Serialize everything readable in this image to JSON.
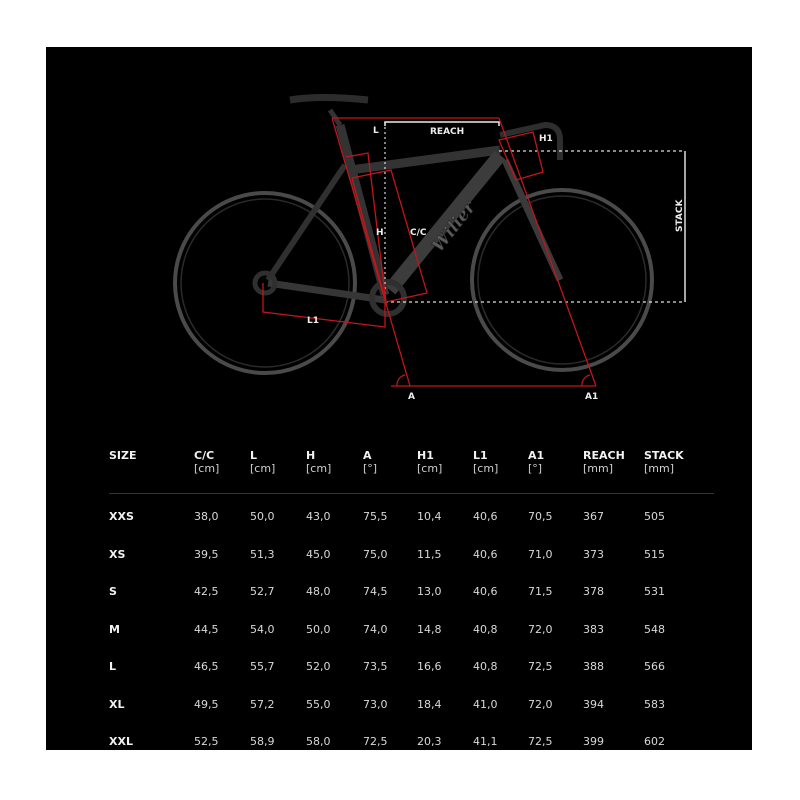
{
  "diagram": {
    "labels": {
      "l": "L",
      "reach": "REACH",
      "h1": "H1",
      "stack": "STACK",
      "h": "H",
      "cc": "C/C",
      "l1": "L1",
      "a": "A",
      "a1": "A1"
    },
    "colors": {
      "background": "#000000",
      "measure_line": "#c0161b",
      "reference_line": "#e6e6e6",
      "bike": "#3a3a3a"
    },
    "brand_logo_text": "Wilier"
  },
  "table": {
    "columns": [
      {
        "name": "SIZE",
        "unit": ""
      },
      {
        "name": "C/C",
        "unit": "[cm]"
      },
      {
        "name": "L",
        "unit": "[cm]"
      },
      {
        "name": "H",
        "unit": "[cm]"
      },
      {
        "name": "A",
        "unit": "[°]"
      },
      {
        "name": "H1",
        "unit": "[cm]"
      },
      {
        "name": "L1",
        "unit": "[cm]"
      },
      {
        "name": "A1",
        "unit": "[°]"
      },
      {
        "name": "REACH",
        "unit": "[mm]"
      },
      {
        "name": "STACK",
        "unit": "[mm]"
      }
    ],
    "rows": [
      [
        "XXS",
        "38,0",
        "50,0",
        "43,0",
        "75,5",
        "10,4",
        "40,6",
        "70,5",
        "367",
        "505"
      ],
      [
        "XS",
        "39,5",
        "51,3",
        "45,0",
        "75,0",
        "11,5",
        "40,6",
        "71,0",
        "373",
        "515"
      ],
      [
        "S",
        "42,5",
        "52,7",
        "48,0",
        "74,5",
        "13,0",
        "40,6",
        "71,5",
        "378",
        "531"
      ],
      [
        "M",
        "44,5",
        "54,0",
        "50,0",
        "74,0",
        "14,8",
        "40,8",
        "72,0",
        "383",
        "548"
      ],
      [
        "L",
        "46,5",
        "55,7",
        "52,0",
        "73,5",
        "16,6",
        "40,8",
        "72,5",
        "388",
        "566"
      ],
      [
        "XL",
        "49,5",
        "57,2",
        "55,0",
        "73,0",
        "18,4",
        "41,0",
        "72,0",
        "394",
        "583"
      ],
      [
        "XXL",
        "52,5",
        "58,9",
        "58,0",
        "72,5",
        "20,3",
        "41,1",
        "72,5",
        "399",
        "602"
      ]
    ]
  }
}
